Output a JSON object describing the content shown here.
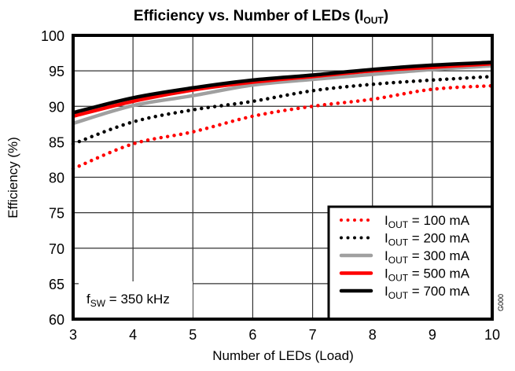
{
  "chart_data": {
    "type": "line",
    "title": "Efficiency vs. Number of LEDs (I",
    "title_sub": "OUT",
    "title_suffix": ")",
    "xlabel": "Number of LEDs (Load)",
    "ylabel": "Efficiency (%)",
    "xlim": [
      3,
      10
    ],
    "ylim": [
      60,
      100
    ],
    "xticks": [
      3,
      4,
      5,
      6,
      7,
      8,
      9,
      10
    ],
    "yticks": [
      60,
      65,
      70,
      75,
      80,
      85,
      90,
      95,
      100
    ],
    "grid": true,
    "legend_position": "bottom-right",
    "x": [
      3,
      4,
      5,
      6,
      7,
      8,
      9,
      10
    ],
    "series": [
      {
        "name": "IOUT = 100 mA",
        "label_main": "I",
        "label_sub": "OUT",
        "label_rest": " = 100 mA",
        "color": "#ff0000",
        "style": "dotted",
        "values": [
          81.2,
          84.7,
          86.4,
          88.6,
          90.0,
          91.0,
          92.4,
          92.9
        ]
      },
      {
        "name": "IOUT = 200 mA",
        "label_main": "I",
        "label_sub": "OUT",
        "label_rest": " = 200 mA",
        "color": "#000000",
        "style": "dotted",
        "values": [
          84.7,
          87.8,
          89.5,
          90.7,
          92.2,
          93.1,
          93.7,
          94.2
        ]
      },
      {
        "name": "IOUT = 300 mA",
        "label_main": "I",
        "label_sub": "OUT",
        "label_rest": " = 300 mA",
        "color": "#a0a0a0",
        "style": "solid",
        "values": [
          87.6,
          90.1,
          91.5,
          93.0,
          93.8,
          94.5,
          95.2,
          95.7
        ]
      },
      {
        "name": "IOUT = 500 mA",
        "label_main": "I",
        "label_sub": "OUT",
        "label_rest": " = 500 mA",
        "color": "#ff0000",
        "style": "solid",
        "values": [
          88.6,
          90.7,
          92.3,
          93.4,
          94.2,
          95.0,
          95.5,
          96.0
        ]
      },
      {
        "name": "IOUT = 700 mA",
        "label_main": "I",
        "label_sub": "OUT",
        "label_rest": " = 700 mA",
        "color": "#000000",
        "style": "solid",
        "values": [
          89.1,
          91.2,
          92.6,
          93.7,
          94.4,
          95.2,
          95.8,
          96.2
        ]
      }
    ],
    "annotation": {
      "main": "f",
      "sub": "SW",
      "rest": " = 350 kHz"
    },
    "figure_id": "G000"
  }
}
